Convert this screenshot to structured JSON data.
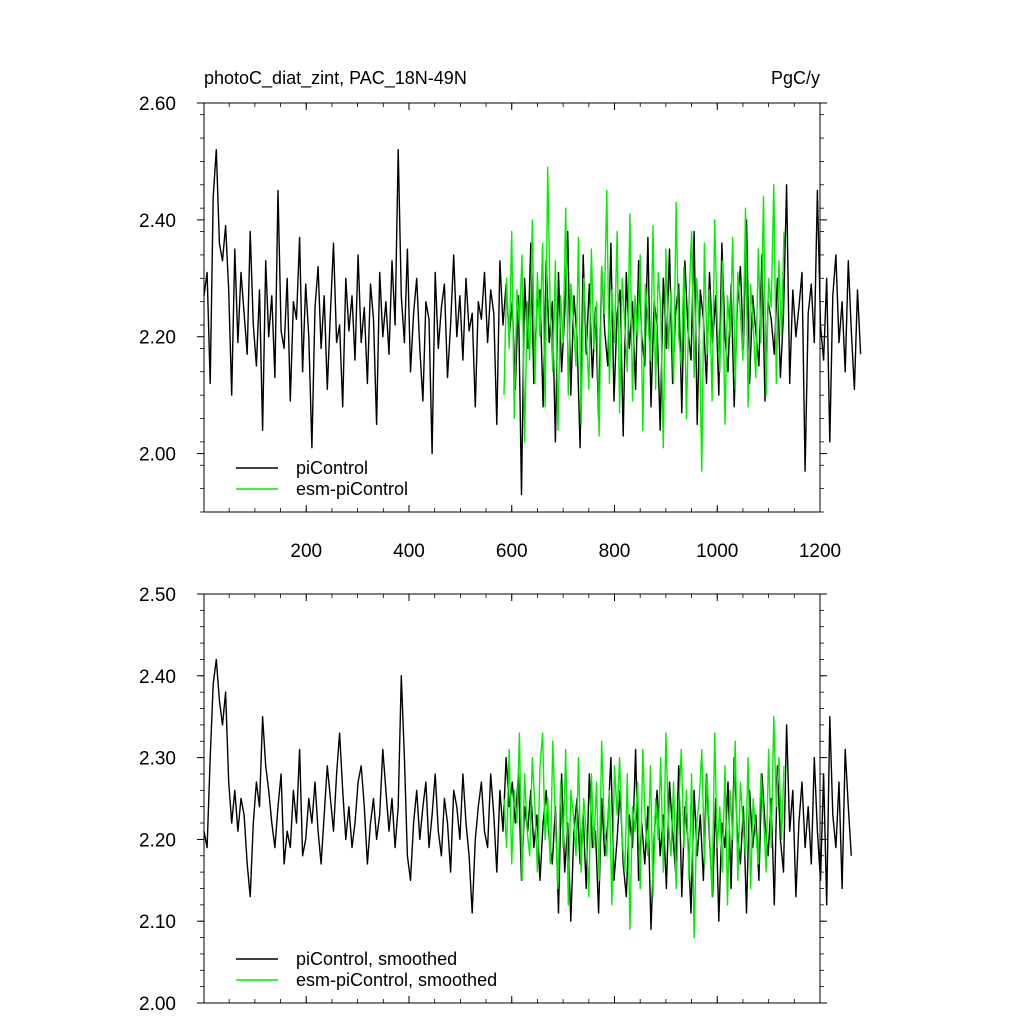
{
  "figure": {
    "title_left": "photoC_diat_zint, PAC_18N-49N",
    "title_right": "PgC/y"
  },
  "chart_data": [
    {
      "type": "line",
      "panel": "top",
      "xlim": [
        1,
        1200
      ],
      "ylim": [
        1.9,
        2.6
      ],
      "xticks": [
        200,
        400,
        600,
        800,
        1000,
        1200
      ],
      "xtick_labels": [
        "200",
        "400",
        "600",
        "800",
        "1000",
        "1200"
      ],
      "yticks": [
        2.0,
        2.2,
        2.4,
        2.6
      ],
      "ytick_labels": [
        "2.00",
        "2.20",
        "2.40",
        "2.60"
      ],
      "grid": false,
      "legend": "bottom-left",
      "series": [
        {
          "name": "piControl",
          "color": "#000000",
          "x_start": 1,
          "x_step": 6,
          "values": [
            2.27,
            2.31,
            2.12,
            2.44,
            2.52,
            2.36,
            2.33,
            2.39,
            2.28,
            2.1,
            2.35,
            2.19,
            2.31,
            2.24,
            2.17,
            2.38,
            2.22,
            2.15,
            2.28,
            2.04,
            2.33,
            2.2,
            2.27,
            2.13,
            2.45,
            2.21,
            2.18,
            2.3,
            2.09,
            2.26,
            2.23,
            2.37,
            2.14,
            2.29,
            2.2,
            2.01,
            2.25,
            2.32,
            2.18,
            2.27,
            2.11,
            2.24,
            2.36,
            2.19,
            2.22,
            2.08,
            2.3,
            2.21,
            2.27,
            2.16,
            2.34,
            2.19,
            2.25,
            2.12,
            2.29,
            2.23,
            2.05,
            2.31,
            2.2,
            2.26,
            2.17,
            2.33,
            2.22,
            2.52,
            2.27,
            2.19,
            2.35,
            2.14,
            2.24,
            2.3,
            2.18,
            2.09,
            2.26,
            2.23,
            2.0,
            2.31,
            2.18,
            2.25,
            2.29,
            2.13,
            2.22,
            2.34,
            2.2,
            2.27,
            2.16,
            2.3,
            2.21,
            2.24,
            2.08,
            2.26,
            2.23,
            2.31,
            2.19,
            2.28,
            2.24,
            2.05,
            2.33,
            2.22,
            2.29,
            2.2,
            2.26,
            2.11,
            2.27,
            1.93,
            2.3,
            2.18,
            2.36,
            2.12,
            2.25,
            2.28,
            2.08,
            2.33,
            2.19,
            2.26,
            2.02,
            2.31,
            2.14,
            2.24,
            2.38,
            2.1,
            2.27,
            2.2,
            2.01,
            2.34,
            2.17,
            2.29,
            2.13,
            2.25,
            2.06,
            2.32,
            2.21,
            2.15,
            2.36,
            2.09,
            2.24,
            2.28,
            2.03,
            2.31,
            2.18,
            2.26,
            2.11,
            2.33,
            2.2,
            2.15,
            2.37,
            2.08,
            2.26,
            2.22,
            2.04,
            2.3,
            2.18,
            2.35,
            2.12,
            2.24,
            2.29,
            2.07,
            2.33,
            2.21,
            2.16,
            2.38,
            2.05,
            2.28,
            2.23,
            2.12,
            2.31,
            2.19,
            2.27,
            2.1,
            2.36,
            2.2,
            2.14,
            2.29,
            2.08,
            2.25,
            2.32,
            2.18,
            2.4,
            2.12,
            2.27,
            2.21,
            2.15,
            2.34,
            2.09,
            2.26,
            2.23,
            2.17,
            2.3,
            2.13,
            2.24,
            2.46,
            2.12,
            2.28,
            2.2,
            2.25,
            2.31,
            1.97,
            2.24,
            2.29,
            2.19,
            2.45,
            2.22,
            2.16,
            2.3,
            2.02,
            2.27,
            2.34,
            2.19,
            2.26,
            2.14,
            2.33,
            2.21,
            2.11,
            2.28,
            2.17
          ]
        },
        {
          "name": "esm-piControl",
          "color": "#00ee00",
          "x_start": 585,
          "x_step": 5,
          "values": [
            2.1,
            2.3,
            2.18,
            2.38,
            2.06,
            2.28,
            2.22,
            2.34,
            2.02,
            2.26,
            2.16,
            2.4,
            2.12,
            2.31,
            2.2,
            2.36,
            2.08,
            2.49,
            2.24,
            2.14,
            2.33,
            2.04,
            2.27,
            2.19,
            2.42,
            2.1,
            2.29,
            2.23,
            2.15,
            2.37,
            2.05,
            2.3,
            2.21,
            2.11,
            2.35,
            2.18,
            2.26,
            2.03,
            2.32,
            2.24,
            2.45,
            2.12,
            2.28,
            2.19,
            2.38,
            2.07,
            2.3,
            2.22,
            2.14,
            2.41,
            2.09,
            2.27,
            2.2,
            2.34,
            2.04,
            2.29,
            2.23,
            2.16,
            2.39,
            2.11,
            2.31,
            2.25,
            2.01,
            2.35,
            2.18,
            2.28,
            2.12,
            2.43,
            2.2,
            2.15,
            2.32,
            2.06,
            2.26,
            2.38,
            2.13,
            2.3,
            2.21,
            1.97,
            2.36,
            2.17,
            2.28,
            2.09,
            2.4,
            2.23,
            2.14,
            2.33,
            2.05,
            2.27,
            2.2,
            2.37,
            2.11,
            2.31,
            2.24,
            2.16,
            2.42,
            2.08,
            2.29,
            2.22,
            2.13,
            2.35,
            2.19,
            2.44,
            2.1,
            2.3,
            2.25,
            2.46,
            2.12,
            2.33,
            2.2,
            2.38
          ]
        }
      ]
    },
    {
      "type": "line",
      "panel": "bottom",
      "xlim": [
        1,
        1200
      ],
      "ylim": [
        2.0,
        2.5
      ],
      "xticks": [
        200,
        400,
        600,
        800,
        1000,
        1200
      ],
      "yticks": [
        2.0,
        2.1,
        2.2,
        2.3,
        2.4,
        2.5
      ],
      "ytick_labels": [
        "2.00",
        "2.10",
        "2.20",
        "2.30",
        "2.40",
        "2.50"
      ],
      "grid": false,
      "legend": "bottom-left",
      "series": [
        {
          "name": "piControl, smoothed",
          "color": "#000000",
          "x_start": 1,
          "x_step": 6,
          "values": [
            2.21,
            2.19,
            2.3,
            2.39,
            2.42,
            2.37,
            2.34,
            2.38,
            2.27,
            2.22,
            2.26,
            2.21,
            2.25,
            2.23,
            2.17,
            2.13,
            2.22,
            2.27,
            2.24,
            2.35,
            2.29,
            2.26,
            2.22,
            2.19,
            2.24,
            2.28,
            2.17,
            2.21,
            2.19,
            2.26,
            2.22,
            2.31,
            2.18,
            2.2,
            2.25,
            2.22,
            2.27,
            2.21,
            2.17,
            2.23,
            2.29,
            2.25,
            2.21,
            2.28,
            2.33,
            2.26,
            2.2,
            2.24,
            2.19,
            2.22,
            2.27,
            2.29,
            2.24,
            2.17,
            2.22,
            2.25,
            2.2,
            2.23,
            2.31,
            2.26,
            2.21,
            2.25,
            2.19,
            2.24,
            2.4,
            2.3,
            2.18,
            2.15,
            2.22,
            2.26,
            2.2,
            2.24,
            2.27,
            2.19,
            2.23,
            2.28,
            2.21,
            2.18,
            2.25,
            2.22,
            2.16,
            2.26,
            2.24,
            2.2,
            2.28,
            2.22,
            2.18,
            2.11,
            2.2,
            2.24,
            2.27,
            2.21,
            2.19,
            2.28,
            2.23,
            2.16,
            2.26,
            2.21,
            2.3,
            2.24,
            2.27,
            2.22,
            2.28,
            2.15,
            2.24,
            2.21,
            2.26,
            2.19,
            2.23,
            2.15,
            2.22,
            2.26,
            2.2,
            2.17,
            2.24,
            2.11,
            2.28,
            2.16,
            2.22,
            2.1,
            2.21,
            2.25,
            2.17,
            2.23,
            2.14,
            2.28,
            2.19,
            2.21,
            2.11,
            2.25,
            2.18,
            2.22,
            2.3,
            2.15,
            2.2,
            2.26,
            2.17,
            2.13,
            2.23,
            2.19,
            2.31,
            2.15,
            2.22,
            2.17,
            2.24,
            2.09,
            2.2,
            2.26,
            2.18,
            2.23,
            2.14,
            2.27,
            2.21,
            2.16,
            2.29,
            2.13,
            2.24,
            2.2,
            2.11,
            2.26,
            2.18,
            2.23,
            2.15,
            2.28,
            2.2,
            2.13,
            2.25,
            2.1,
            2.22,
            2.19,
            2.27,
            2.14,
            2.3,
            2.21,
            2.17,
            2.24,
            2.11,
            2.26,
            2.19,
            2.23,
            2.15,
            2.28,
            2.22,
            2.18,
            2.25,
            2.12,
            2.29,
            2.2,
            2.16,
            2.34,
            2.21,
            2.26,
            2.13,
            2.22,
            2.27,
            2.19,
            2.24,
            2.17,
            2.3,
            2.21,
            2.15,
            2.28,
            2.12,
            2.35,
            2.23,
            2.19,
            2.27,
            2.14,
            2.31,
            2.24,
            2.18
          ]
        },
        {
          "name": "esm-piControl, smoothed",
          "color": "#00ee00",
          "x_start": 585,
          "x_step": 5,
          "values": [
            2.25,
            2.19,
            2.31,
            2.17,
            2.26,
            2.22,
            2.33,
            2.15,
            2.28,
            2.21,
            2.18,
            2.3,
            2.24,
            2.16,
            2.29,
            2.33,
            2.2,
            2.25,
            2.17,
            2.32,
            2.22,
            2.14,
            2.27,
            2.19,
            2.31,
            2.12,
            2.26,
            2.23,
            2.18,
            2.3,
            2.16,
            2.25,
            2.21,
            2.13,
            2.28,
            2.19,
            2.27,
            2.15,
            2.32,
            2.22,
            2.18,
            2.26,
            2.12,
            2.29,
            2.23,
            2.3,
            2.2,
            2.16,
            2.28,
            2.09,
            2.24,
            2.21,
            2.27,
            2.14,
            2.31,
            2.22,
            2.18,
            2.29,
            2.13,
            2.25,
            2.2,
            2.3,
            2.16,
            2.33,
            2.22,
            2.18,
            2.27,
            2.14,
            2.24,
            2.31,
            2.19,
            2.26,
            2.15,
            2.28,
            2.08,
            2.22,
            2.25,
            2.31,
            2.17,
            2.28,
            2.21,
            2.13,
            2.33,
            2.19,
            2.24,
            2.16,
            2.29,
            2.12,
            2.26,
            2.2,
            2.32,
            2.15,
            2.27,
            2.22,
            2.18,
            2.3,
            2.14,
            2.25,
            2.21,
            2.17,
            2.28,
            2.23,
            2.16,
            2.31,
            2.19,
            2.35,
            2.24,
            2.3,
            2.2,
            2.29
          ]
        }
      ]
    }
  ]
}
